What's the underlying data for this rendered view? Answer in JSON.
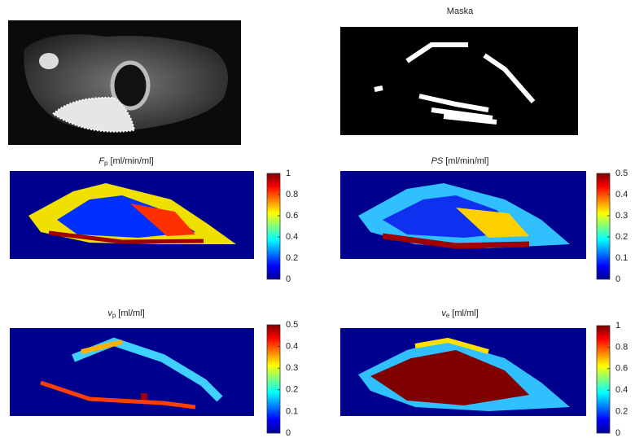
{
  "panels": [
    {
      "title": null
    },
    {
      "title": {
        "symbol": "Maska"
      }
    },
    {
      "title": {
        "symbol": "F",
        "subscript": "p",
        "unit": "[ml/min/ml]"
      },
      "colorbar": {
        "lim": [
          0,
          1
        ],
        "ticks": [
          0,
          0.2,
          0.4,
          0.6,
          0.8,
          1
        ]
      }
    },
    {
      "title": {
        "symbol": "PS",
        "unit": "[ml/min/ml]"
      },
      "colorbar": {
        "lim": [
          0,
          0.5
        ],
        "ticks": [
          0,
          0.1,
          0.2,
          0.3,
          0.4,
          0.5
        ]
      }
    },
    {
      "title": {
        "symbol": "v",
        "subscript": "p",
        "unit": "[ml/ml]"
      },
      "colorbar": {
        "lim": [
          0,
          0.5
        ],
        "ticks": [
          0,
          0.1,
          0.2,
          0.3,
          0.4,
          0.5
        ]
      }
    },
    {
      "title": {
        "symbol": "v",
        "subscript": "e",
        "unit": "[ml/ml]"
      },
      "colorbar": {
        "lim": [
          0,
          1
        ],
        "ticks": [
          0,
          0.2,
          0.4,
          0.6,
          0.8,
          1
        ]
      }
    }
  ]
}
